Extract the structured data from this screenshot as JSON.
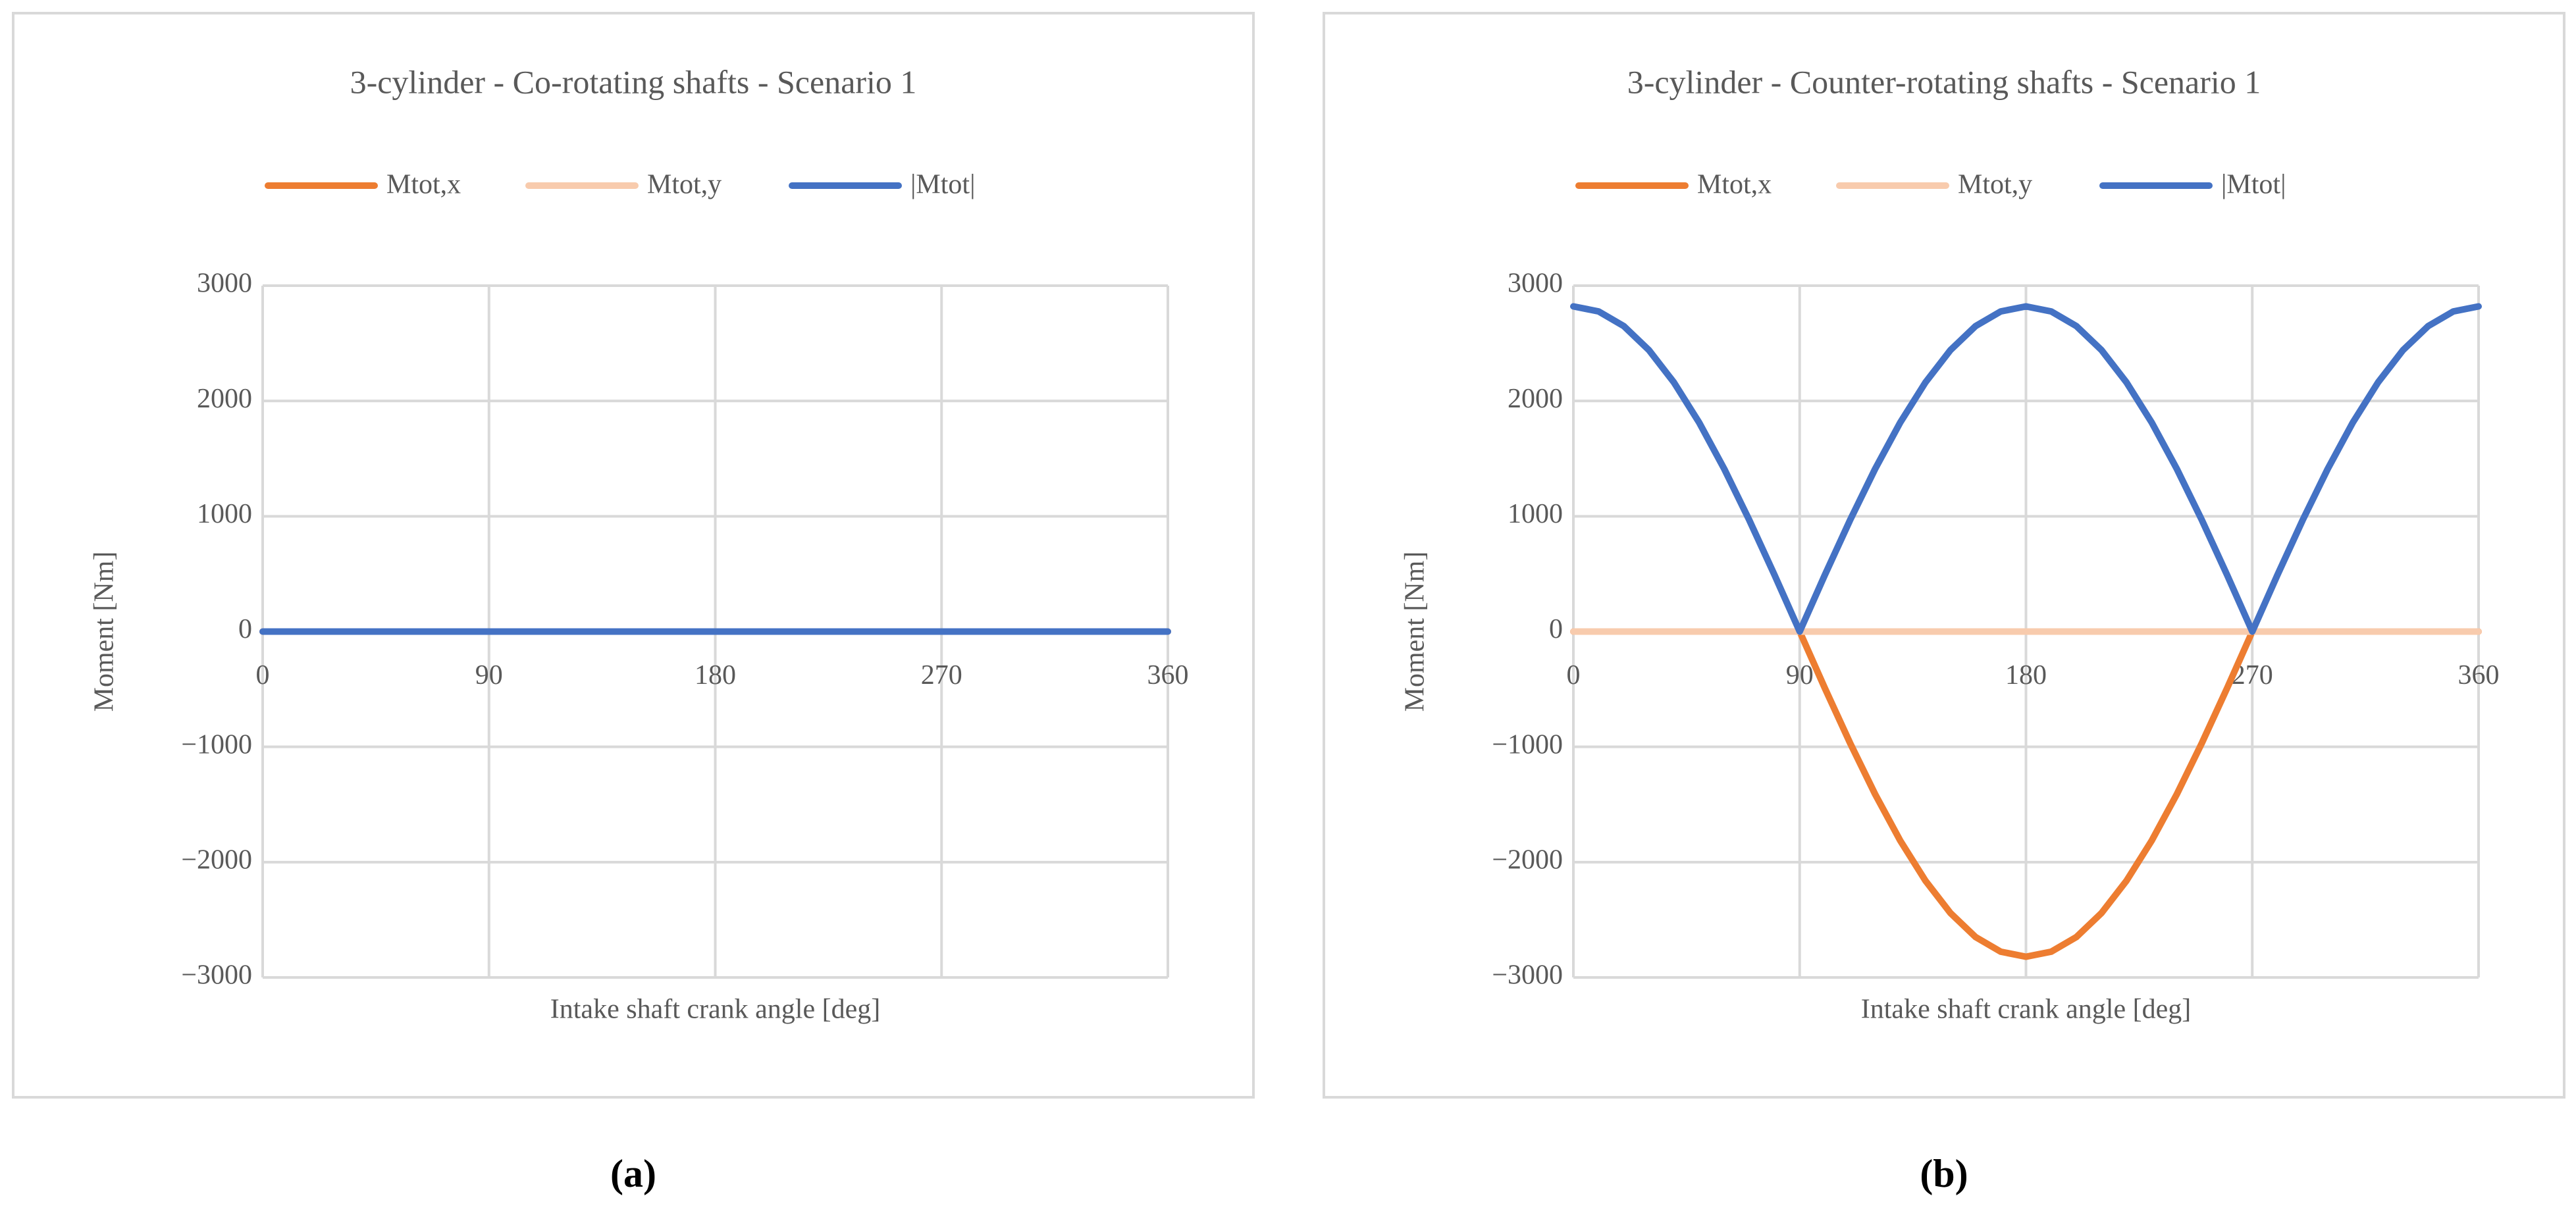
{
  "chart_data": [
    {
      "type": "line",
      "title": "3-cylinder - Co-rotating shafts - Scenario 1",
      "caption": "(a)",
      "x_label": "Intake shaft crank angle [deg]",
      "y_label": "Moment [Nm]",
      "x": [
        0,
        10,
        20,
        30,
        40,
        50,
        60,
        70,
        80,
        90,
        100,
        110,
        120,
        130,
        140,
        150,
        160,
        170,
        180,
        190,
        200,
        210,
        220,
        230,
        240,
        250,
        260,
        270,
        280,
        290,
        300,
        310,
        320,
        330,
        340,
        350,
        360
      ],
      "series": [
        {
          "name": "Mtot,x",
          "color": "#ed7d31",
          "values": [
            0,
            0,
            0,
            0,
            0,
            0,
            0,
            0,
            0,
            0,
            0,
            0,
            0,
            0,
            0,
            0,
            0,
            0,
            0,
            0,
            0,
            0,
            0,
            0,
            0,
            0,
            0,
            0,
            0,
            0,
            0,
            0,
            0,
            0,
            0,
            0,
            0
          ]
        },
        {
          "name": "Mtot,y",
          "color": "#f8cbad",
          "values": [
            0,
            0,
            0,
            0,
            0,
            0,
            0,
            0,
            0,
            0,
            0,
            0,
            0,
            0,
            0,
            0,
            0,
            0,
            0,
            0,
            0,
            0,
            0,
            0,
            0,
            0,
            0,
            0,
            0,
            0,
            0,
            0,
            0,
            0,
            0,
            0,
            0
          ]
        },
        {
          "name": "|Mtot|",
          "color": "#4472c4",
          "values": [
            0,
            0,
            0,
            0,
            0,
            0,
            0,
            0,
            0,
            0,
            0,
            0,
            0,
            0,
            0,
            0,
            0,
            0,
            0,
            0,
            0,
            0,
            0,
            0,
            0,
            0,
            0,
            0,
            0,
            0,
            0,
            0,
            0,
            0,
            0,
            0,
            0
          ]
        }
      ],
      "xlim": [
        0,
        360
      ],
      "xticks": [
        0,
        90,
        180,
        270,
        360
      ],
      "ylim": [
        -3000,
        3000
      ],
      "yticks": [
        {
          "value": -3000,
          "label": "−3000"
        },
        {
          "value": -2000,
          "label": "−2000"
        },
        {
          "value": -1000,
          "label": "−1000"
        },
        0,
        1000,
        2000,
        3000
      ],
      "grid": true,
      "legend": "top"
    },
    {
      "type": "line",
      "title": "3-cylinder - Counter-rotating shafts - Scenario 1",
      "caption": "(b)",
      "x_label": "Intake shaft crank angle [deg]",
      "y_label": "Moment [Nm]",
      "x": [
        0,
        10,
        20,
        30,
        40,
        50,
        60,
        70,
        80,
        90,
        100,
        110,
        120,
        130,
        140,
        150,
        160,
        170,
        180,
        190,
        200,
        210,
        220,
        230,
        240,
        250,
        260,
        270,
        280,
        290,
        300,
        310,
        320,
        330,
        340,
        350,
        360
      ],
      "series": [
        {
          "name": "Mtot,x",
          "color": "#ed7d31",
          "values": [
            0,
            0,
            0,
            0,
            0,
            0,
            0,
            0,
            0,
            0,
            -490,
            -964,
            -1410,
            -1813,
            -2160,
            -2442,
            -2650,
            -2777,
            -2820,
            -2777,
            -2650,
            -2442,
            -2160,
            -1813,
            -1410,
            -964,
            -490,
            0,
            0,
            0,
            0,
            0,
            0,
            0,
            0,
            0,
            0
          ]
        },
        {
          "name": "Mtot,y",
          "color": "#f8cbad",
          "values": [
            0,
            0,
            0,
            0,
            0,
            0,
            0,
            0,
            0,
            0,
            0,
            0,
            0,
            0,
            0,
            0,
            0,
            0,
            0,
            0,
            0,
            0,
            0,
            0,
            0,
            0,
            0,
            0,
            0,
            0,
            0,
            0,
            0,
            0,
            0,
            0,
            0
          ]
        },
        {
          "name": "|Mtot|",
          "color": "#4472c4",
          "values": [
            2820,
            2777,
            2650,
            2442,
            2160,
            1813,
            1410,
            964,
            490,
            0,
            490,
            964,
            1410,
            1813,
            2160,
            2442,
            2650,
            2777,
            2820,
            2777,
            2650,
            2442,
            2160,
            1813,
            1410,
            964,
            490,
            0,
            490,
            964,
            1410,
            1813,
            2160,
            2442,
            2650,
            2777,
            2820
          ]
        }
      ],
      "xlim": [
        0,
        360
      ],
      "xticks": [
        0,
        90,
        180,
        270,
        360
      ],
      "ylim": [
        -3000,
        3000
      ],
      "yticks": [
        {
          "value": -3000,
          "label": "−3000"
        },
        {
          "value": -2000,
          "label": "−2000"
        },
        {
          "value": -1000,
          "label": "−1000"
        },
        0,
        1000,
        2000,
        3000
      ],
      "grid": true,
      "legend": "top"
    }
  ]
}
